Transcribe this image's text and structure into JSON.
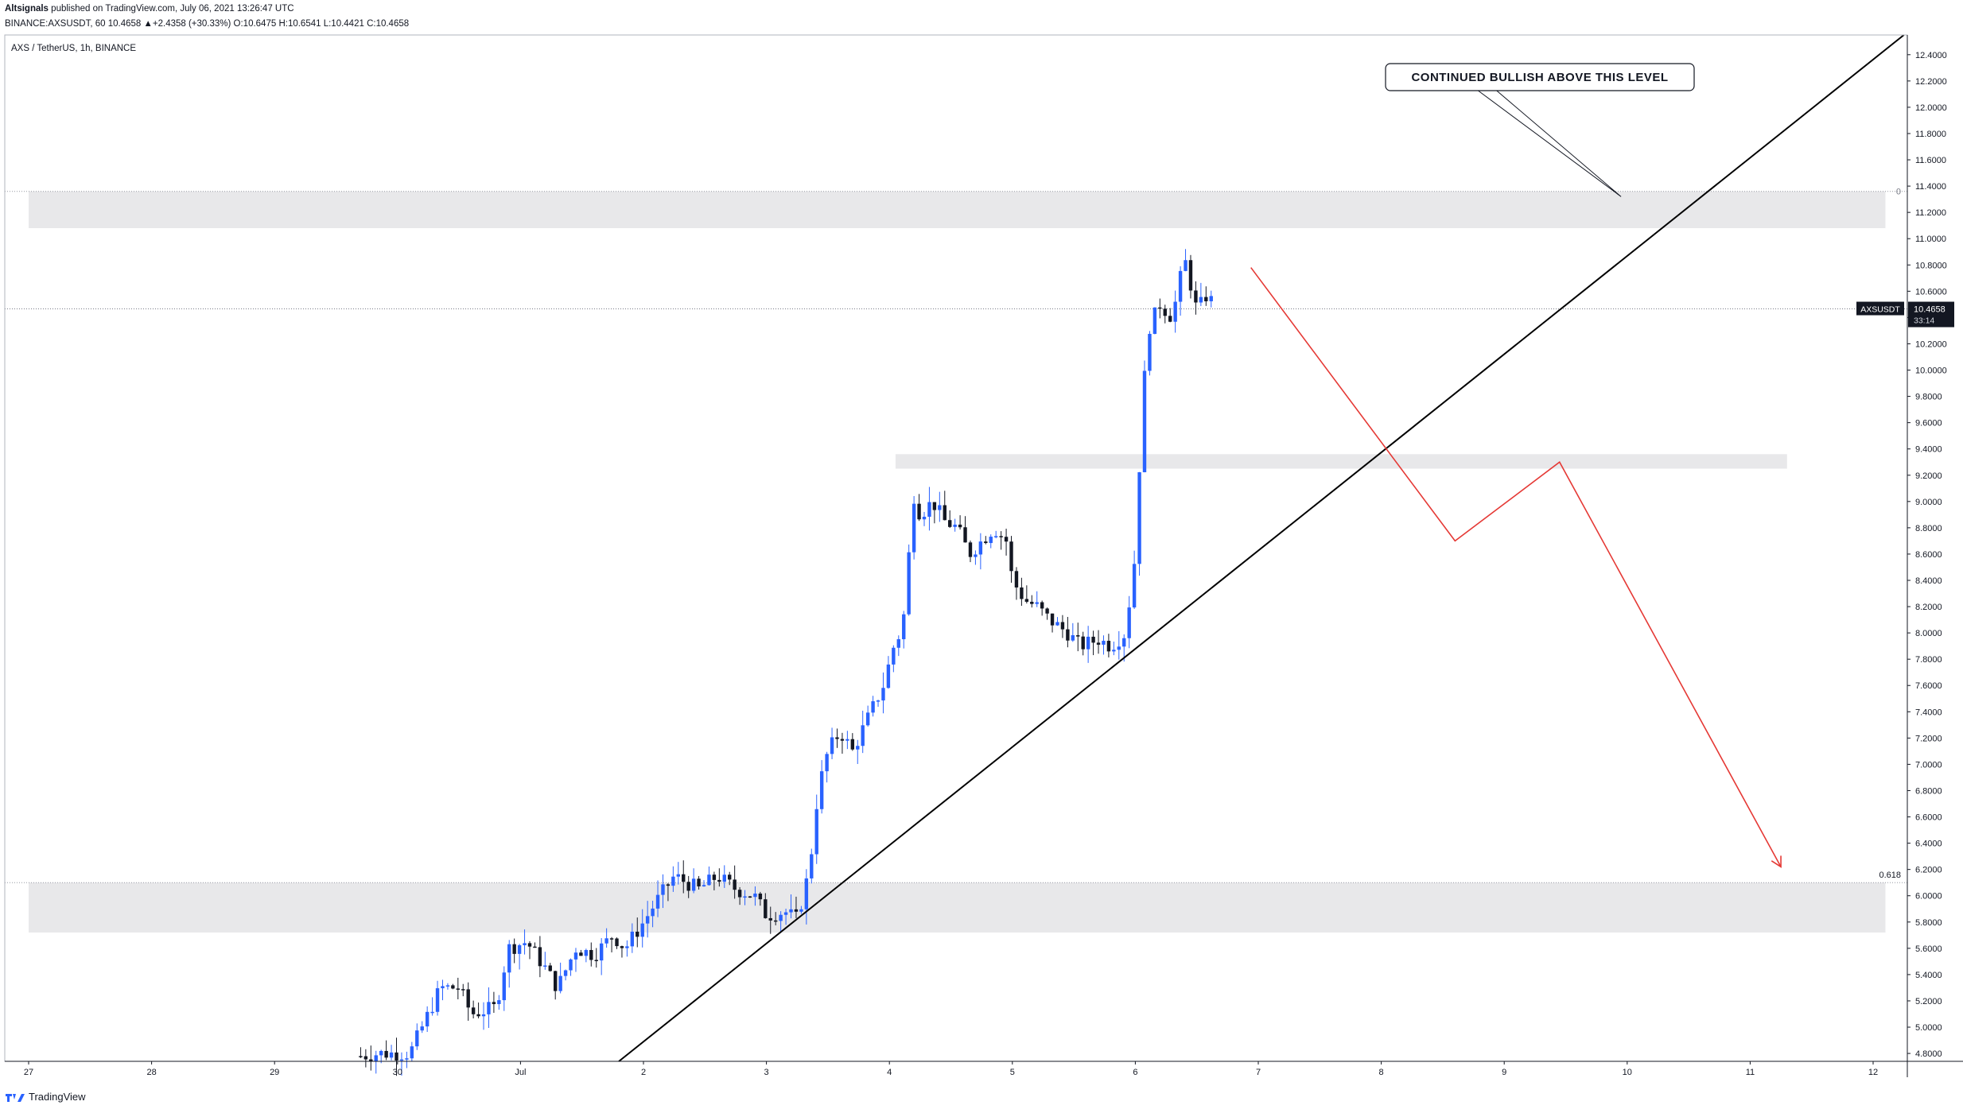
{
  "header": {
    "publisher": "Altsignals",
    "published_line": "published on TradingView.com, July 06, 2021 13:26:47 UTC",
    "ohlc_line": "BINANCE:AXSUSDT, 60  10.4658  ▲+2.4358 (+30.33%)  O:10.6475  H:10.6541  L:10.4421  C:10.4658"
  },
  "legend": {
    "symbol_title": "AXS / TetherUS, 1h, BINANCE"
  },
  "footer": {
    "brand": "TradingView"
  },
  "price_tag": {
    "label": "AXSUSDT",
    "value": "10.4658",
    "countdown": "33:14"
  },
  "annotation": {
    "text": "CONTINUED BULLISH ABOVE THIS LEVEL"
  },
  "fib_labels": {
    "top": "0",
    "bottom": "0.618"
  },
  "colors": {
    "up": "#2962ff",
    "down": "#131722",
    "trendline": "#000000",
    "projection": "#e53935",
    "zone": "#e8e8ea"
  },
  "chart_data": {
    "type": "candlestick",
    "title": "AXS / TetherUS, 1h, BINANCE",
    "y_ticks": [
      "12.4000",
      "12.2000",
      "12.0000",
      "11.8000",
      "11.6000",
      "11.4000",
      "11.2000",
      "11.0000",
      "10.8000",
      "10.6000",
      "10.4000",
      "10.2000",
      "10.0000",
      "9.8000",
      "9.6000",
      "9.4000",
      "9.2000",
      "9.0000",
      "8.8000",
      "8.6000",
      "8.4000",
      "8.2000",
      "8.0000",
      "7.8000",
      "7.6000",
      "7.4000",
      "7.2000",
      "7.0000",
      "6.8000",
      "6.6000",
      "6.4000",
      "6.2000",
      "6.0000",
      "5.8000",
      "5.6000",
      "5.4000",
      "5.2000",
      "5.0000",
      "4.8000"
    ],
    "x_ticks": [
      "27",
      "28",
      "29",
      "30",
      "Jul",
      "2",
      "3",
      "4",
      "5",
      "6",
      "7",
      "8",
      "9",
      "10",
      "11",
      "12"
    ],
    "ylim": [
      4.74,
      12.55
    ],
    "last_price": 10.4658,
    "zones": [
      {
        "from_day": 0,
        "to_day": 15.1,
        "low": 11.08,
        "high": 11.36
      },
      {
        "from_day": 7.05,
        "to_day": 14.3,
        "low": 9.25,
        "high": 9.36
      },
      {
        "from_day": 0,
        "to_day": 15.1,
        "low": 5.72,
        "high": 6.1
      }
    ],
    "fib_levels": [
      {
        "label": "0",
        "price": 11.36
      },
      {
        "label": "0.618",
        "price": 6.1
      }
    ],
    "trendline": {
      "from": [
        4.8,
        4.74
      ],
      "to": [
        15.25,
        12.55
      ]
    },
    "projection": [
      [
        9.94,
        10.78
      ],
      [
        11.6,
        8.7
      ],
      [
        12.45,
        9.3
      ],
      [
        14.25,
        6.22
      ]
    ],
    "annotation_pointer": [
      12.95,
      11.32
    ],
    "key_points": [
      [
        2.7,
        4.78
      ],
      [
        2.85,
        4.8
      ],
      [
        3.1,
        4.8
      ],
      [
        3.2,
        5.0
      ],
      [
        3.35,
        5.3
      ],
      [
        3.5,
        5.3
      ],
      [
        3.6,
        5.1
      ],
      [
        3.8,
        5.15
      ],
      [
        3.9,
        5.6
      ],
      [
        4.05,
        5.65
      ],
      [
        4.2,
        5.45
      ],
      [
        4.3,
        5.3
      ],
      [
        4.45,
        5.6
      ],
      [
        4.6,
        5.55
      ],
      [
        4.75,
        5.7
      ],
      [
        4.85,
        5.6
      ],
      [
        5.0,
        5.8
      ],
      [
        5.1,
        5.95
      ],
      [
        5.25,
        6.15
      ],
      [
        5.45,
        6.05
      ],
      [
        5.6,
        6.15
      ],
      [
        5.75,
        6.05
      ],
      [
        5.9,
        6.0
      ],
      [
        6.0,
        5.85
      ],
      [
        6.15,
        5.88
      ],
      [
        6.25,
        5.82
      ],
      [
        6.35,
        6.2
      ],
      [
        6.42,
        6.8
      ],
      [
        6.5,
        7.1
      ],
      [
        6.6,
        7.25
      ],
      [
        6.7,
        7.1
      ],
      [
        6.8,
        7.3
      ],
      [
        6.95,
        7.6
      ],
      [
        7.05,
        7.95
      ],
      [
        7.1,
        8.0
      ],
      [
        7.15,
        8.4
      ],
      [
        7.18,
        9.1
      ],
      [
        7.25,
        8.9
      ],
      [
        7.35,
        9.0
      ],
      [
        7.45,
        8.85
      ],
      [
        7.55,
        8.8
      ],
      [
        7.65,
        8.6
      ],
      [
        7.75,
        8.7
      ],
      [
        7.85,
        8.8
      ],
      [
        7.95,
        8.7
      ],
      [
        8.0,
        8.4
      ],
      [
        8.1,
        8.25
      ],
      [
        8.2,
        8.2
      ],
      [
        8.3,
        8.1
      ],
      [
        8.45,
        8.0
      ],
      [
        8.55,
        7.9
      ],
      [
        8.7,
        7.95
      ],
      [
        8.8,
        7.9
      ],
      [
        8.92,
        8.0
      ],
      [
        9.0,
        8.6
      ],
      [
        9.05,
        9.6
      ],
      [
        9.1,
        10.3
      ],
      [
        9.2,
        10.5
      ],
      [
        9.3,
        10.4
      ],
      [
        9.4,
        10.85
      ],
      [
        9.5,
        10.45
      ],
      [
        9.6,
        10.6
      ],
      [
        9.63,
        10.47
      ]
    ]
  }
}
